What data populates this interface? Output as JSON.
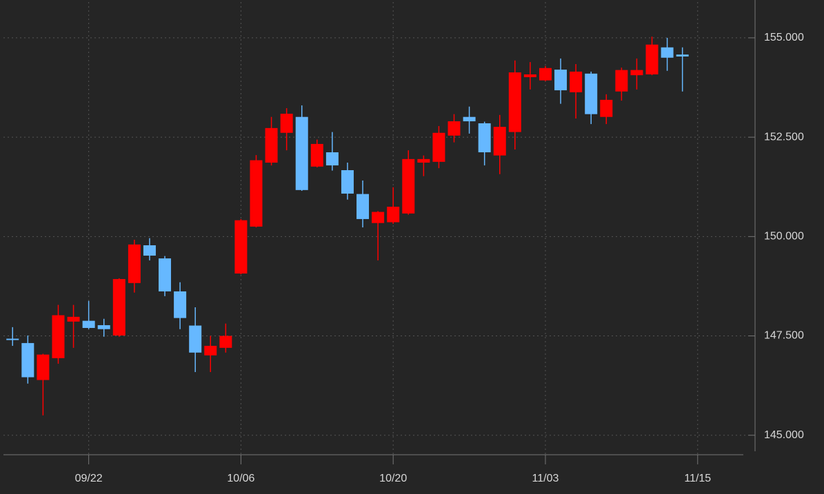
{
  "chart_data": {
    "type": "candlestick",
    "open": [
      147.43,
      147.32,
      146.39,
      146.94,
      147.86,
      147.88,
      147.77,
      147.51,
      148.83,
      149.78,
      149.45,
      148.62,
      147.76,
      147.01,
      147.2,
      149.07,
      150.25,
      151.86,
      152.61,
      153.01,
      151.76,
      152.12,
      151.67,
      151.07,
      150.34,
      150.36,
      150.58,
      151.86,
      151.88,
      152.54,
      153.01,
      152.85,
      152.04,
      152.63,
      154.01,
      153.93,
      154.2,
      153.63,
      154.1,
      153.01,
      153.65,
      154.06,
      154.08,
      154.76,
      154.58
    ],
    "high": [
      147.72,
      147.51,
      147.05,
      148.28,
      148.28,
      148.38,
      147.93,
      148.95,
      149.92,
      149.96,
      149.51,
      148.85,
      148.22,
      147.5,
      147.81,
      150.44,
      152.05,
      153.01,
      153.23,
      153.3,
      152.44,
      152.63,
      151.86,
      151.41,
      150.64,
      151.24,
      152.17,
      152.04,
      152.78,
      153.08,
      153.27,
      152.89,
      153.06,
      154.43,
      154.39,
      154.29,
      154.48,
      154.34,
      154.15,
      153.58,
      154.25,
      154.48,
      155.03,
      155.0,
      154.76
    ],
    "low": [
      147.25,
      146.3,
      145.5,
      146.8,
      147.2,
      147.67,
      147.48,
      147.48,
      148.59,
      149.4,
      148.5,
      147.67,
      146.59,
      146.59,
      147.08,
      149.05,
      150.23,
      151.79,
      152.17,
      151.15,
      151.74,
      151.66,
      150.93,
      150.23,
      149.4,
      150.32,
      150.55,
      151.52,
      151.72,
      152.37,
      152.59,
      151.79,
      151.57,
      152.19,
      153.7,
      153.91,
      153.34,
      152.97,
      152.83,
      152.83,
      153.42,
      153.7,
      154.06,
      154.17,
      153.65
    ],
    "close": [
      147.4,
      146.46,
      147.03,
      148.02,
      147.98,
      147.7,
      147.67,
      148.93,
      149.8,
      149.52,
      148.62,
      147.95,
      147.08,
      147.25,
      147.5,
      150.41,
      151.92,
      152.73,
      153.09,
      151.17,
      152.33,
      151.79,
      151.08,
      150.44,
      150.62,
      150.75,
      151.95,
      151.95,
      152.61,
      152.9,
      152.9,
      152.12,
      152.76,
      154.13,
      154.08,
      154.24,
      153.68,
      154.15,
      153.08,
      153.44,
      154.19,
      154.19,
      154.83,
      154.5,
      154.53
    ],
    "up_color": "#ff0000",
    "down_color": "#66b8ff",
    "xlim": [
      -0.6,
      48
    ],
    "xticks": [
      {
        "value": 5,
        "label": "09/22"
      },
      {
        "value": 15,
        "label": "10/06"
      },
      {
        "value": 25,
        "label": "10/20"
      },
      {
        "value": 35,
        "label": "11/03"
      },
      {
        "value": 45,
        "label": "11/15"
      }
    ],
    "ylim": [
      144.51,
      155.9
    ],
    "yticks": [
      {
        "value": 145,
        "label": "145.000"
      },
      {
        "value": 147.5,
        "label": "147.500"
      },
      {
        "value": 150,
        "label": "150.000"
      },
      {
        "value": 152.5,
        "label": "152.500"
      },
      {
        "value": 155,
        "label": "155.000"
      }
    ],
    "grid": true
  }
}
